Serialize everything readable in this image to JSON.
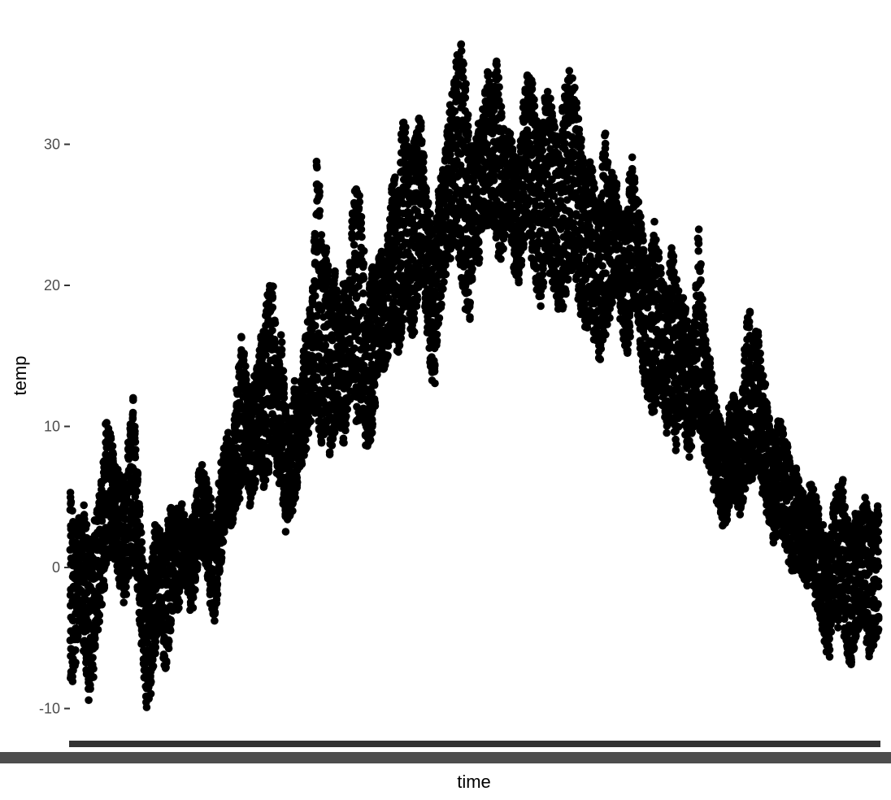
{
  "chart_data": {
    "type": "scatter",
    "title": "",
    "xlabel": "time",
    "ylabel": "temp",
    "ylim": [
      -11.5,
      38
    ],
    "yticks": [
      -10,
      0,
      10,
      20,
      30
    ],
    "ytick_labels": [
      "-10",
      "0",
      "10",
      "20",
      "30"
    ],
    "xticks": [],
    "grid": false,
    "legend": "none",
    "point_color": "#000000",
    "axis_line_color": "#333333",
    "x_days": 365,
    "readings_per_day": 24,
    "daily_ranges": [
      [
        -8,
        5
      ],
      [
        -7,
        2
      ],
      [
        -3,
        3
      ],
      [
        -6,
        4
      ],
      [
        -9,
        1
      ],
      [
        -7,
        2
      ],
      [
        -4,
        4
      ],
      [
        -2,
        6
      ],
      [
        0,
        10
      ],
      [
        2,
        9
      ],
      [
        1,
        7
      ],
      [
        -1,
        6
      ],
      [
        -2,
        5
      ],
      [
        0,
        9
      ],
      [
        1,
        12
      ],
      [
        -2,
        6
      ],
      [
        -6,
        1
      ],
      [
        -10,
        -2
      ],
      [
        -8,
        0
      ],
      [
        -5,
        3
      ],
      [
        -3,
        2
      ],
      [
        -8,
        1
      ],
      [
        -5,
        4
      ],
      [
        -2,
        3
      ],
      [
        -3,
        4
      ],
      [
        0,
        4
      ],
      [
        -1,
        2
      ],
      [
        -3,
        3
      ],
      [
        0,
        5
      ],
      [
        2,
        7
      ],
      [
        1,
        6
      ],
      [
        -2,
        5
      ],
      [
        -4,
        2
      ],
      [
        -1,
        5
      ],
      [
        2,
        8
      ],
      [
        4,
        9
      ],
      [
        3,
        8
      ],
      [
        5,
        12
      ],
      [
        6,
        16
      ],
      [
        7,
        14
      ],
      [
        5,
        11
      ],
      [
        6,
        13
      ],
      [
        8,
        15
      ],
      [
        6,
        17
      ],
      [
        7,
        19
      ],
      [
        9,
        20
      ],
      [
        7,
        14
      ],
      [
        6,
        16
      ],
      [
        3,
        11
      ],
      [
        4,
        9
      ],
      [
        5,
        13
      ],
      [
        7,
        12
      ],
      [
        8,
        15
      ],
      [
        10,
        17
      ],
      [
        12,
        20
      ],
      [
        11,
        30
      ],
      [
        9,
        22
      ],
      [
        11,
        23
      ],
      [
        8,
        19
      ],
      [
        10,
        21
      ],
      [
        11,
        17
      ],
      [
        9,
        20
      ],
      [
        12,
        19
      ],
      [
        14,
        26
      ],
      [
        10,
        27
      ],
      [
        12,
        24
      ],
      [
        8,
        16
      ],
      [
        9,
        22
      ],
      [
        13,
        20
      ],
      [
        15,
        23
      ],
      [
        14,
        21
      ],
      [
        16,
        24
      ],
      [
        18,
        28
      ],
      [
        15,
        26
      ],
      [
        17,
        32
      ],
      [
        20,
        30
      ],
      [
        16,
        29
      ],
      [
        18,
        31
      ],
      [
        21,
        32
      ],
      [
        19,
        27
      ],
      [
        15,
        25
      ],
      [
        13,
        22
      ],
      [
        17,
        26
      ],
      [
        20,
        28
      ],
      [
        22,
        31
      ],
      [
        23,
        33
      ],
      [
        24,
        36
      ],
      [
        21,
        37
      ],
      [
        19,
        34
      ],
      [
        18,
        30
      ],
      [
        23,
        29
      ],
      [
        22,
        31
      ],
      [
        25,
        32
      ],
      [
        24,
        35
      ],
      [
        26,
        33
      ],
      [
        23,
        36
      ],
      [
        22,
        32
      ],
      [
        24,
        30
      ],
      [
        25,
        31
      ],
      [
        21,
        29
      ],
      [
        20,
        28
      ],
      [
        23,
        33
      ],
      [
        25,
        35
      ],
      [
        22,
        34
      ],
      [
        20,
        31
      ],
      [
        19,
        30
      ],
      [
        23,
        34
      ],
      [
        21,
        33
      ],
      [
        20,
        31
      ],
      [
        18,
        29
      ],
      [
        19,
        33
      ],
      [
        21,
        35
      ],
      [
        22,
        34
      ],
      [
        20,
        32
      ],
      [
        18,
        30
      ],
      [
        17,
        27
      ],
      [
        18,
        29
      ],
      [
        16,
        26
      ],
      [
        15,
        25
      ],
      [
        17,
        31
      ],
      [
        18,
        27
      ],
      [
        19,
        28
      ],
      [
        20,
        26
      ],
      [
        17,
        24
      ],
      [
        15,
        25
      ],
      [
        18,
        29
      ],
      [
        19,
        26
      ],
      [
        16,
        25
      ],
      [
        13,
        22
      ],
      [
        12,
        21
      ],
      [
        11,
        24
      ],
      [
        13,
        22
      ],
      [
        12,
        20
      ],
      [
        10,
        19
      ],
      [
        11,
        23
      ],
      [
        9,
        20
      ],
      [
        12,
        19
      ],
      [
        10,
        18
      ],
      [
        8,
        16
      ],
      [
        10,
        17
      ],
      [
        11,
        24
      ],
      [
        9,
        18
      ],
      [
        8,
        15
      ],
      [
        7,
        13
      ],
      [
        5,
        11
      ],
      [
        4,
        10
      ],
      [
        3,
        9
      ],
      [
        5,
        11
      ],
      [
        6,
        12
      ],
      [
        4,
        10
      ],
      [
        5,
        13
      ],
      [
        7,
        19
      ],
      [
        6,
        15
      ],
      [
        8,
        17
      ],
      [
        6,
        14
      ],
      [
        5,
        12
      ],
      [
        3,
        10
      ],
      [
        2,
        8
      ],
      [
        4,
        11
      ],
      [
        2,
        9
      ],
      [
        1,
        8
      ],
      [
        0,
        6
      ],
      [
        1,
        7
      ],
      [
        0,
        5
      ],
      [
        -1,
        4
      ],
      [
        1,
        6
      ],
      [
        -2,
        5
      ],
      [
        -3,
        3
      ],
      [
        -5,
        2
      ],
      [
        -6,
        1
      ],
      [
        -3,
        4
      ],
      [
        -4,
        5
      ],
      [
        -2,
        6
      ],
      [
        -6,
        3
      ],
      [
        -7,
        2
      ],
      [
        -5,
        4
      ],
      [
        -3,
        3
      ],
      [
        -4,
        5
      ],
      [
        -6,
        4
      ],
      [
        -5,
        3
      ],
      [
        -4,
        4
      ]
    ]
  }
}
